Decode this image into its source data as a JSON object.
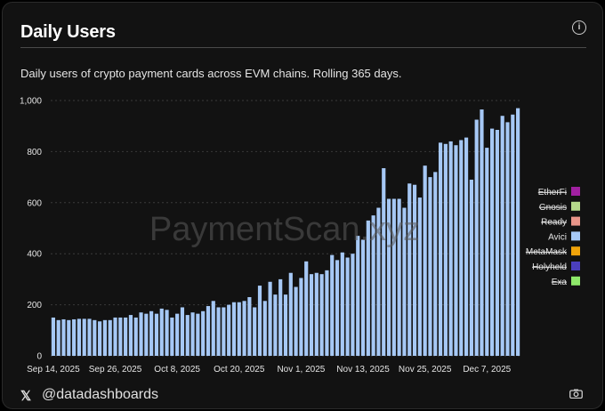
{
  "header": {
    "title": "Daily Users",
    "subtitle": "Daily users of crypto payment cards across EVM chains. Rolling 365 days."
  },
  "footer": {
    "handle": "@datadashboards"
  },
  "watermark": "PaymentScan.xyz",
  "colors": {
    "bar": "#a6c8f5",
    "background": "#121212",
    "text": "#e4e4e4"
  },
  "chart_data": {
    "type": "bar",
    "ylim": [
      0,
      1000
    ],
    "yticks": [
      0,
      200,
      400,
      600,
      800,
      1000
    ],
    "ytick_labels": [
      "0",
      "200",
      "400",
      "600",
      "800",
      "1,000"
    ],
    "xtick_labels": [
      {
        "label": "Sep 14, 2025",
        "index": 0
      },
      {
        "label": "Sep 26, 2025",
        "index": 12
      },
      {
        "label": "Oct 8, 2025",
        "index": 24
      },
      {
        "label": "Oct 20, 2025",
        "index": 36
      },
      {
        "label": "Nov 1, 2025",
        "index": 48
      },
      {
        "label": "Nov 13, 2025",
        "index": 60
      },
      {
        "label": "Nov 25, 2025",
        "index": 72
      },
      {
        "label": "Dec 7, 2025",
        "index": 84
      }
    ],
    "grid": true,
    "legend_placement": "right",
    "series": [
      {
        "name": "EtherFi",
        "color": "#a020a0",
        "hidden": true,
        "values": []
      },
      {
        "name": "Gnosis",
        "color": "#b5d98a",
        "hidden": true,
        "values": []
      },
      {
        "name": "Ready",
        "color": "#e9968a",
        "hidden": true,
        "values": []
      },
      {
        "name": "Avici",
        "color": "#a6c8f5",
        "hidden": false,
        "values": [
          150,
          140,
          143,
          140,
          143,
          145,
          145,
          145,
          140,
          135,
          140,
          140,
          150,
          150,
          150,
          160,
          150,
          170,
          165,
          175,
          165,
          185,
          180,
          150,
          165,
          190,
          160,
          170,
          165,
          175,
          195,
          215,
          190,
          190,
          200,
          210,
          210,
          215,
          230,
          190,
          275,
          215,
          290,
          240,
          300,
          240,
          325,
          270,
          305,
          370,
          320,
          325,
          320,
          335,
          395,
          375,
          405,
          385,
          400,
          470,
          455,
          530,
          550,
          580,
          735,
          615,
          615,
          615,
          580,
          675,
          670,
          620,
          745,
          700,
          720,
          835,
          830,
          840,
          825,
          845,
          855,
          690,
          925,
          965,
          815,
          890,
          885,
          940,
          915,
          945,
          970
        ]
      },
      {
        "name": "MetaMask",
        "color": "#f0a30a",
        "hidden": true,
        "values": []
      },
      {
        "name": "Holyheld",
        "color": "#4b3fbd",
        "hidden": true,
        "values": []
      },
      {
        "name": "Exa",
        "color": "#8ee86a",
        "hidden": true,
        "values": []
      }
    ]
  }
}
